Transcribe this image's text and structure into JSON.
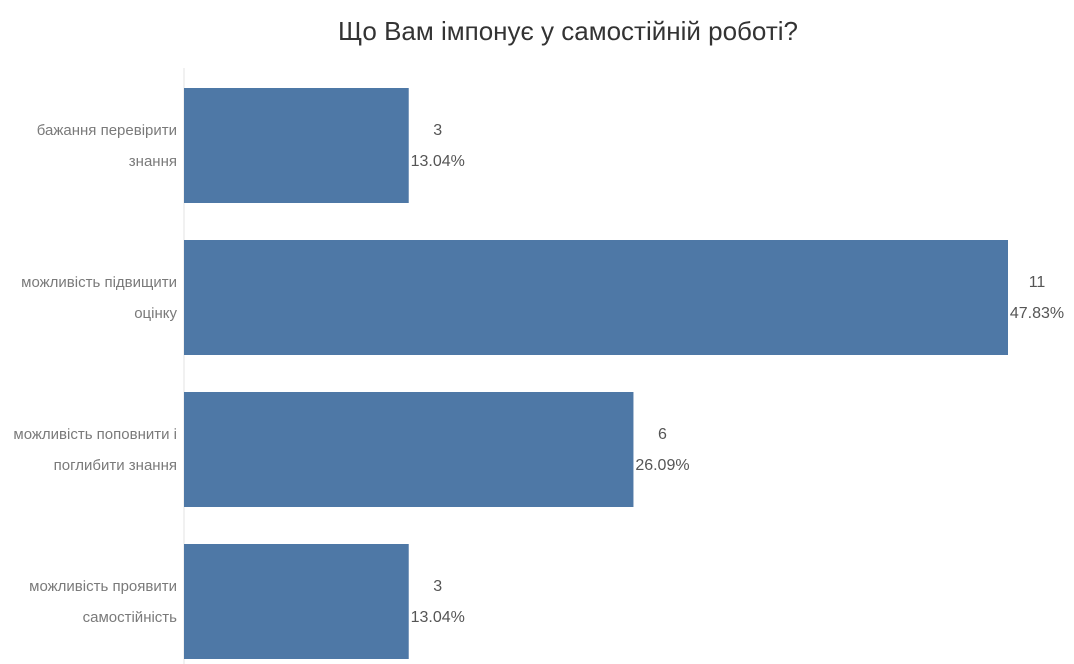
{
  "chart_data": {
    "type": "bar",
    "orientation": "horizontal",
    "title": "Що Вам імпонує у самостійній роботі?",
    "xlabel": "",
    "ylabel": "",
    "categories": [
      [
        "бажання перевірити",
        "знання"
      ],
      [
        "можливість підвищити",
        "оцінку"
      ],
      [
        "можливість поповнити і",
        "поглибити знання"
      ],
      [
        "можливість проявити",
        "самостійність"
      ]
    ],
    "values": [
      3,
      11,
      6,
      3
    ],
    "percent_labels": [
      "13.04%",
      "47.83%",
      "26.09%",
      "13.04%"
    ],
    "xlim": [
      0,
      11
    ],
    "grid": false,
    "legend": "none",
    "bar_color": "#4e78a6"
  }
}
